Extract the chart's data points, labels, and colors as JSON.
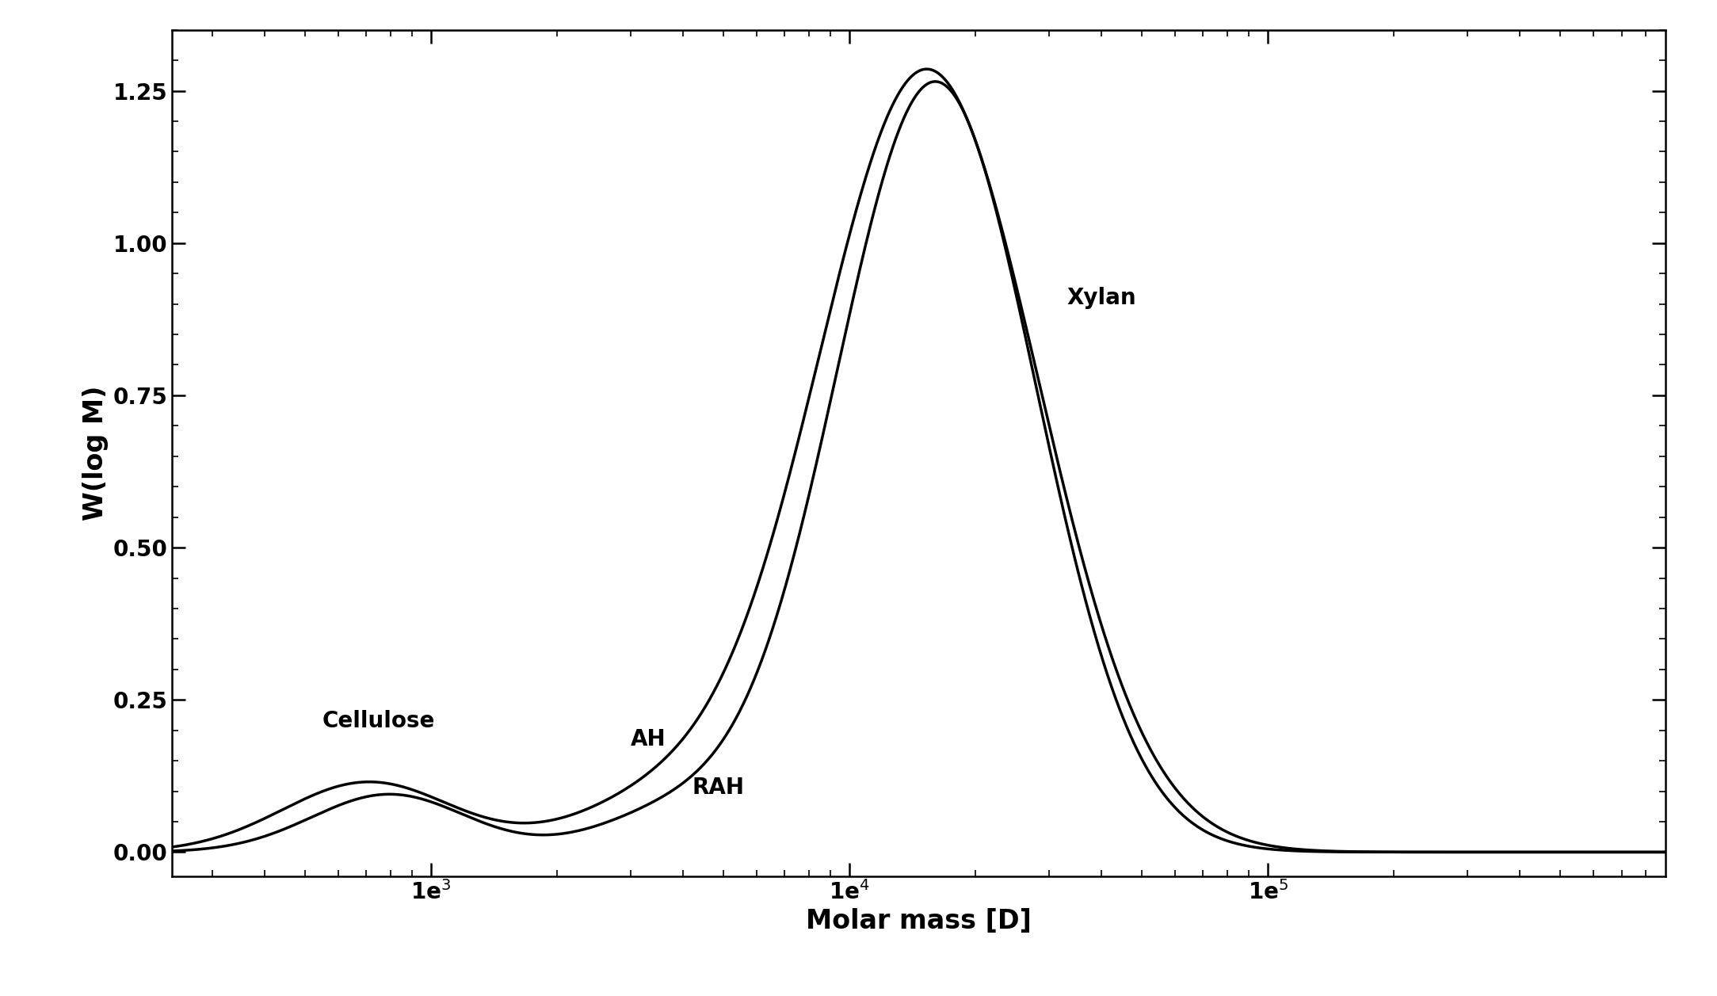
{
  "xlabel": "Molar mass [D]",
  "ylabel": "W(log M)",
  "ylim": [
    -0.04,
    1.35
  ],
  "yticks": [
    0.0,
    0.25,
    0.5,
    0.75,
    1.0,
    1.25
  ],
  "line_color": "#000000",
  "linewidth": 2.5,
  "background_color": "#ffffff",
  "label_cellulose": "Cellulose",
  "label_AH": "AH",
  "label_RAH": "RAH",
  "label_Xylan": "Xylan",
  "annotation_fontsize": 20,
  "axis_label_fontsize": 24,
  "tick_fontsize": 20
}
